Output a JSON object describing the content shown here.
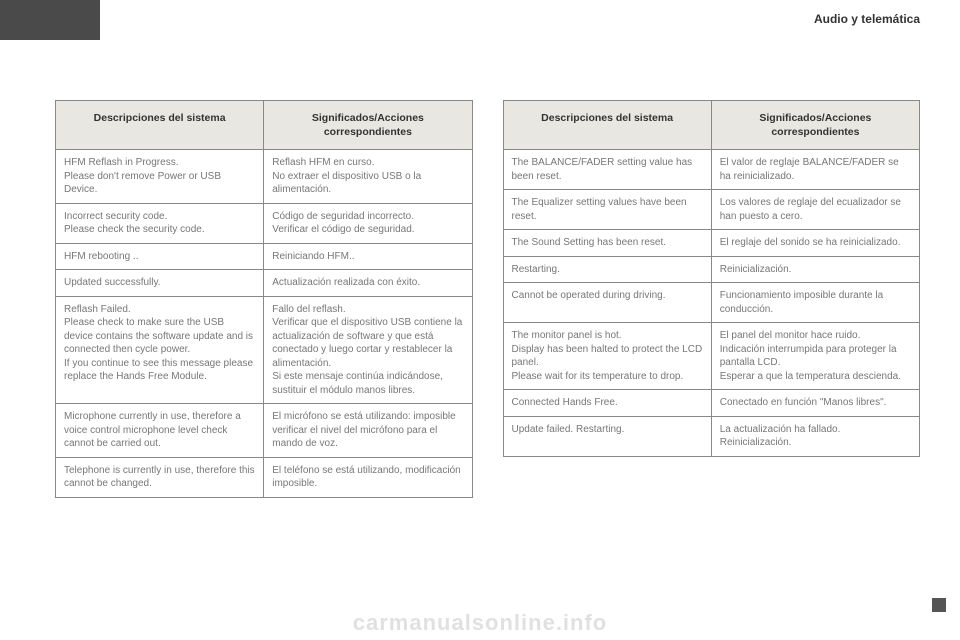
{
  "header": {
    "section": "Audio y telemática"
  },
  "watermark": "carmanualsonline.info",
  "leftTable": {
    "headers": [
      "Descripciones del sistema",
      "Significados/Acciones correspondientes"
    ],
    "rows": [
      [
        "HFM Reflash in Progress.\nPlease don't remove Power or USB Device.",
        "Reflash HFM en curso.\nNo extraer el dispositivo USB o la alimentación."
      ],
      [
        "Incorrect security code.\nPlease check the security code.",
        "Código de seguridad incorrecto.\nVerificar el código de seguridad."
      ],
      [
        "HFM rebooting ..",
        "Reiniciando HFM.."
      ],
      [
        "Updated successfully.",
        "Actualización realizada con éxito."
      ],
      [
        "Reflash Failed.\nPlease check to make sure the USB device contains the software update and is connected then cycle power.\nIf you continue to see this message please replace the Hands Free Module.",
        "Fallo del reflash.\nVerificar que el dispositivo USB contiene la actualización de software y que está conectado y luego cortar y restablecer la alimentación.\nSi este mensaje continúa indicándose, sustituir el módulo manos libres."
      ],
      [
        "Microphone currently in use, therefore a voice control microphone level check cannot be carried out.",
        "El micrófono se está utilizando: imposible verificar el nivel del micrófono para el mando de voz."
      ],
      [
        "Telephone is currently in use, therefore this cannot be changed.",
        "El teléfono se está utilizando, modificación imposible."
      ]
    ]
  },
  "rightTable": {
    "headers": [
      "Descripciones del sistema",
      "Significados/Acciones correspondientes"
    ],
    "rows": [
      [
        "The BALANCE/FADER setting value has been reset.",
        "El valor de reglaje BALANCE/FADER se ha reinicializado."
      ],
      [
        "The Equalizer setting values have been reset.",
        "Los valores de reglaje del ecualizador se han puesto a cero."
      ],
      [
        "The Sound Setting has been reset.",
        "El reglaje del sonido se ha reinicializado."
      ],
      [
        "Restarting.",
        "Reinicialización."
      ],
      [
        "Cannot be operated during driving.",
        "Funcionamiento imposible durante la conducción."
      ],
      [
        "The monitor panel is hot.\nDisplay has been halted to protect the LCD panel.\nPlease wait for its temperature to drop.",
        "El panel del monitor hace ruido.\nIndicación interrumpida para proteger la pantalla LCD.\nEsperar a que la temperatura descienda."
      ],
      [
        "Connected Hands Free.",
        "Conectado en función \"Manos libres\"."
      ],
      [
        "Update failed. Restarting.",
        "La actualización ha fallado.\nReinicialización."
      ]
    ]
  }
}
